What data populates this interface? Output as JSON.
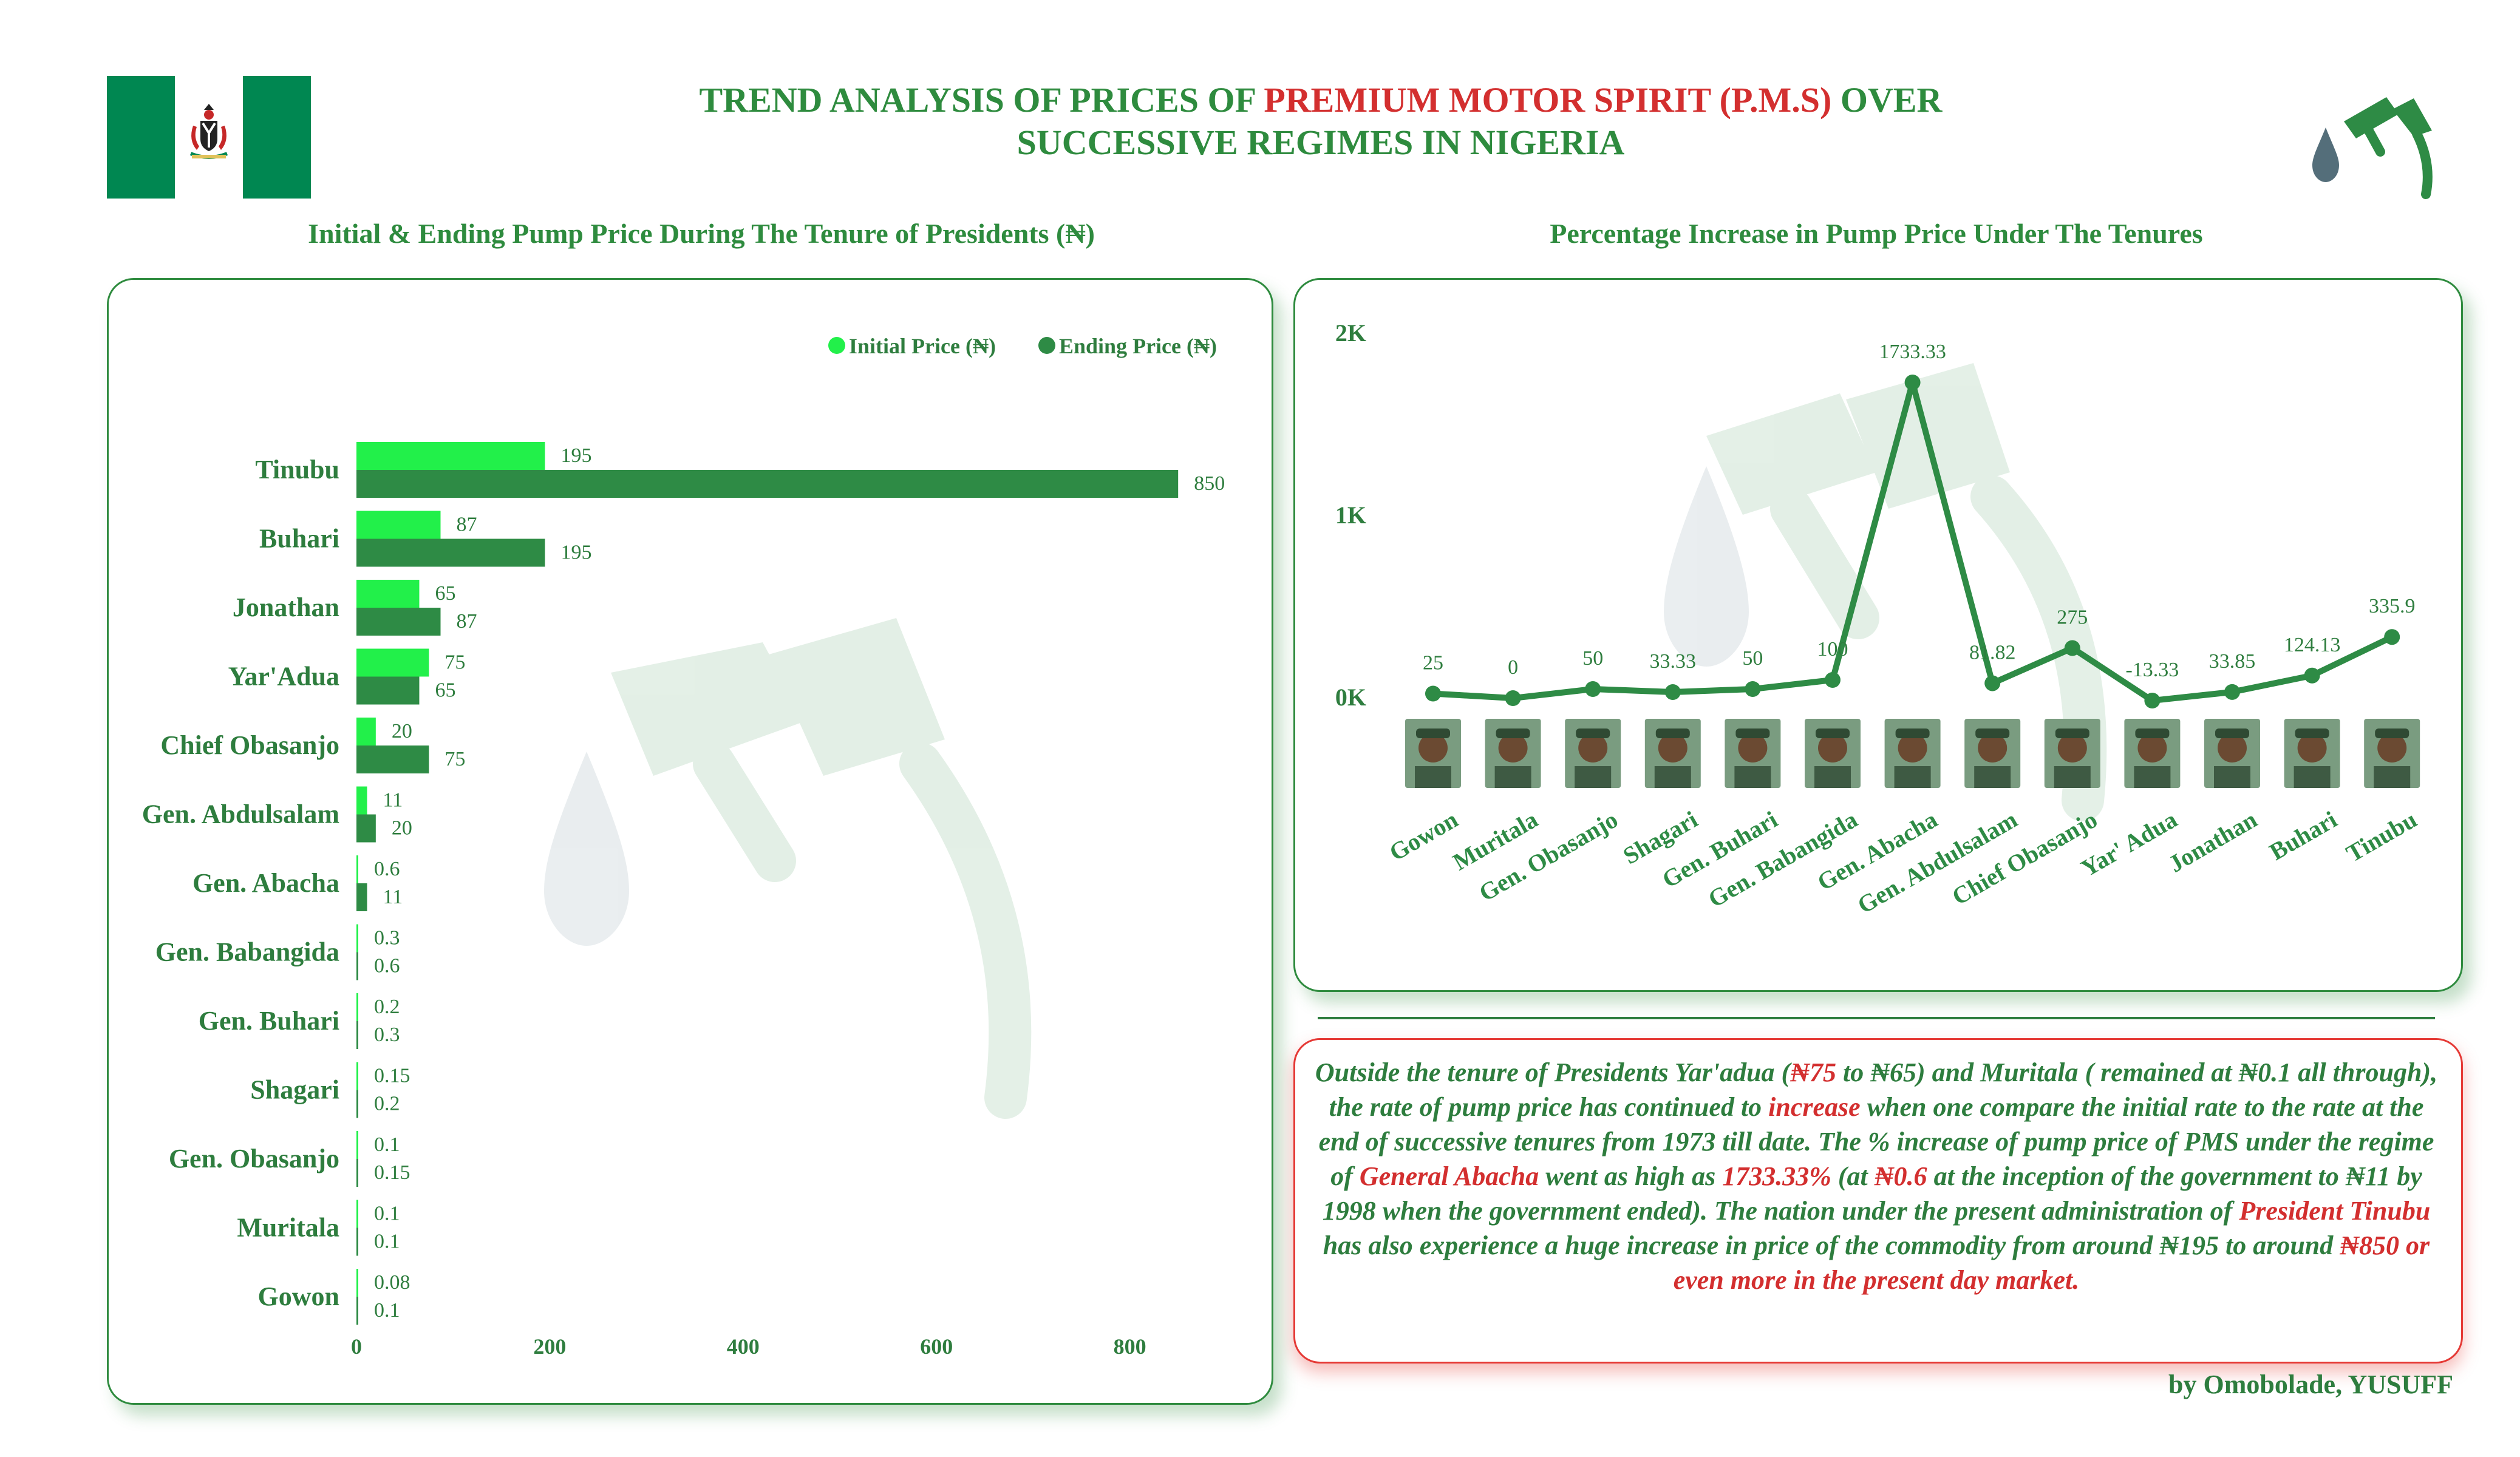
{
  "header": {
    "title_part1": "TREND ANALYSIS OF PRICES OF ",
    "title_highlight": "PREMIUM MOTOR SPIRIT (P.M.S)",
    "title_part2": " OVER",
    "title_line2": "SUCCESSIVE REGIMES IN NIGERIA"
  },
  "colors": {
    "initial": "#22f04a",
    "ending": "#2e8b45",
    "text_green": "#2e7d3e",
    "accent_red": "#d32f2f",
    "flag_green": "#008751"
  },
  "left_panel": {
    "title": "Initial & Ending Pump Price During The Tenure of  Presidents (₦)"
  },
  "right_panel": {
    "title": "Percentage Increase in Pump Price Under The Tenures"
  },
  "chart_data": [
    {
      "type": "bar",
      "orientation": "horizontal",
      "title": "Initial & Ending Pump Price During The Tenure of  Presidents (₦)",
      "categories": [
        "Tinubu",
        "Buhari",
        "Jonathan",
        "Yar'Adua",
        "Chief Obasanjo",
        "Gen. Abdulsalam",
        "Gen. Abacha",
        "Gen. Babangida",
        "Gen. Buhari",
        "Shagari",
        "Gen. Obasanjo",
        "Muritala",
        "Gowon"
      ],
      "series": [
        {
          "name": "Initial Price (₦)",
          "values": [
            195,
            87,
            65,
            75,
            20,
            11,
            0.6,
            0.3,
            0.2,
            0.15,
            0.1,
            0.1,
            0.08
          ]
        },
        {
          "name": "Ending Price (₦)",
          "values": [
            850,
            195,
            87,
            65,
            75,
            20,
            11,
            0.6,
            0.3,
            0.2,
            0.15,
            0.1,
            0.1
          ]
        }
      ],
      "xticks": [
        0,
        200,
        400,
        600,
        800
      ],
      "xlim": [
        0,
        900
      ],
      "legend": "top-right"
    },
    {
      "type": "line",
      "title": "Percentage Increase in Pump Price Under The Tenures",
      "categories": [
        "Gowon",
        "Muritala",
        "Gen. Obasanjo",
        "Shagari",
        "Gen. Buhari",
        "Gen. Babangida",
        "Gen. Abacha",
        "Gen. Abdulsalam",
        "Chief Obasanjo",
        "Yar' Adua",
        "Jonathan",
        "Buhari",
        "Tinubu"
      ],
      "values": [
        25,
        0,
        50,
        33.33,
        50,
        100,
        1733.33,
        81.82,
        275,
        -13.33,
        33.85,
        124.13,
        335.9
      ],
      "labels": [
        "25",
        "0",
        "50",
        "33.33",
        "50",
        "100",
        "1733.33",
        "81.82",
        "275",
        "-13.33",
        "33.85",
        "124.13",
        "335.9"
      ],
      "yticks": [
        "0K",
        "1K",
        "2K"
      ],
      "ylim": [
        0,
        2000
      ]
    }
  ],
  "note": {
    "t1": "Outside the tenure of Presidents Yar'adua (",
    "h1": "₦75",
    "t2": " to ₦65) and Muritala ( remained at ₦0.1 all through), the rate of pump price has continued to ",
    "h2": "increase",
    "t3": " when one compare the initial rate to the rate at the end of successive tenures from 1973 till date. The % increase of pump price of PMS under the regime of ",
    "h3": "General Abacha",
    "t4": " went as high as ",
    "h4": "1733.33%",
    "t5": " (at ",
    "h5": "₦0.6",
    "t6": " at the inception of the government to ₦11 by 1998 when the government ended). The nation under the present administration of ",
    "h6": "President Tinubu",
    "t7": " has also experience a huge increase in price of the commodity from around ₦195 to around ",
    "h7": "₦850 or even more in the present day market."
  },
  "byline": "by Omobolade, YUSUFF"
}
